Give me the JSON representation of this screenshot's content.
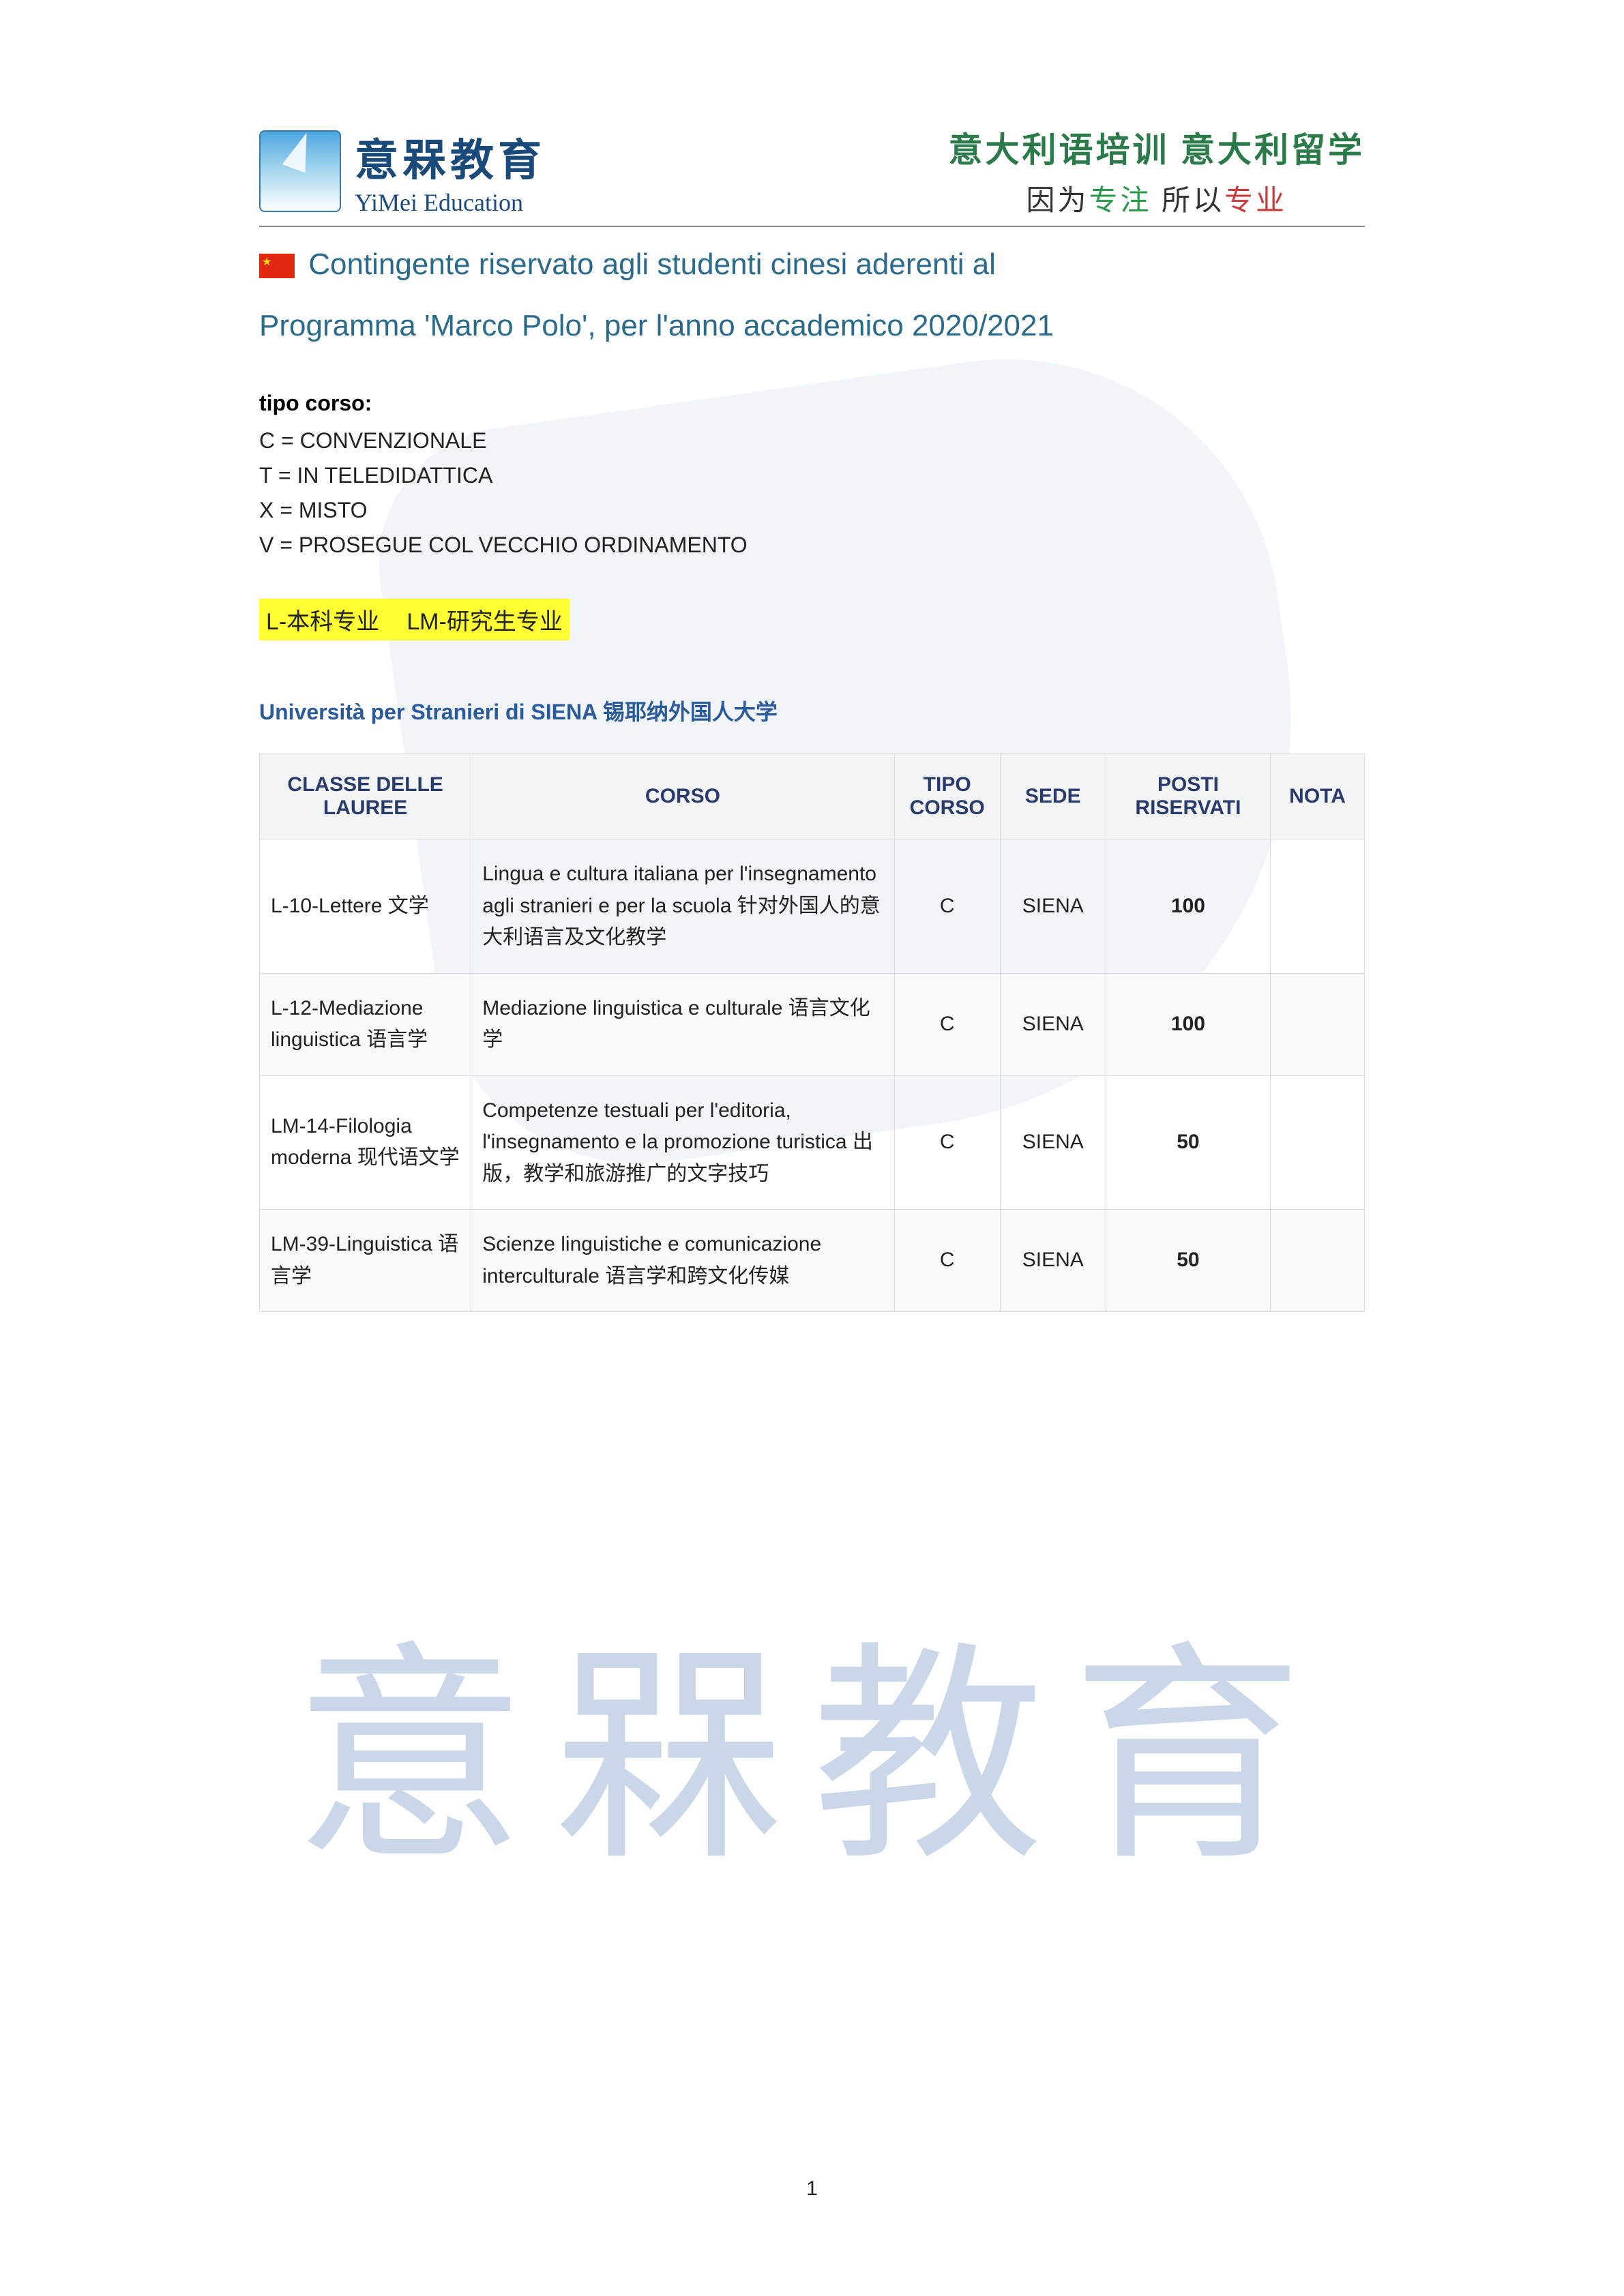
{
  "header": {
    "logo_cn": "意槑教育",
    "logo_en": "YiMei Education",
    "right_top": "意大利语培训 意大利留学",
    "right_bottom_p1": "因为",
    "right_bottom_accent1": "专注",
    "right_bottom_p2": " 所以",
    "right_bottom_accent2": "专业"
  },
  "title": {
    "line1": "Contingente riservato agli studenti cinesi aderenti al",
    "line2": "Programma 'Marco Polo', per l'anno accademico 2020/2021"
  },
  "tipo": {
    "label": "tipo corso:",
    "lines": [
      "C = CONVENZIONALE",
      "T = IN TELEDIDATTICA",
      "X = MISTO",
      "V = PROSEGUE COL VECCHIO ORDINAMENTO"
    ]
  },
  "highlight": {
    "part1": "L-本科专业",
    "part2": "LM-研究生专业"
  },
  "university": "Università per Stranieri di SIENA  锡耶纳外国人大学",
  "table": {
    "columns": [
      "CLASSE DELLE LAUREE",
      "CORSO",
      "TIPO CORSO",
      "SEDE",
      "POSTI RISERVATI",
      "NOTA"
    ],
    "col_widths": [
      "18%",
      "36%",
      "9%",
      "9%",
      "14%",
      "8%"
    ],
    "col_align": [
      "left",
      "left",
      "center",
      "center",
      "center",
      "center"
    ],
    "bold_cols": [
      false,
      false,
      false,
      false,
      true,
      false
    ],
    "rows": [
      {
        "classe": "L-10-Lettere 文学",
        "corso": "Lingua e cultura italiana per l'insegnamento agli stranieri e per la scuola 针对外国人的意大利语言及文化教学",
        "tipo": "C",
        "sede": "SIENA",
        "posti": "100",
        "nota": ""
      },
      {
        "classe": "L-12-Mediazione linguistica 语言学",
        "corso": "Mediazione linguistica e culturale 语言文化学",
        "tipo": "C",
        "sede": "SIENA",
        "posti": "100",
        "nota": ""
      },
      {
        "classe": "LM-14-Filologia moderna 现代语文学",
        "corso": "Competenze testuali per l'editoria, l'insegnamento e la promozione turistica 出版，教学和旅游推广的文字技巧",
        "tipo": "C",
        "sede": "SIENA",
        "posti": "50",
        "nota": ""
      },
      {
        "classe": "LM-39-Linguistica 语言学",
        "corso": "Scienze linguistiche e comunicazione interculturale 语言学和跨文化传媒",
        "tipo": "C",
        "sede": "SIENA",
        "posti": "50",
        "nota": ""
      }
    ]
  },
  "watermark": "意槑教育",
  "page_number": "1",
  "colors": {
    "title": "#2a6a8a",
    "uni": "#2a5a9a",
    "th_bg": "#f2f4f6",
    "th_text": "#2a3a6a",
    "border": "#d8dde2",
    "highlight_bg": "#ffff33",
    "green": "#2a9a4a",
    "red": "#c83a3a",
    "watermark": "#9db8d8"
  }
}
